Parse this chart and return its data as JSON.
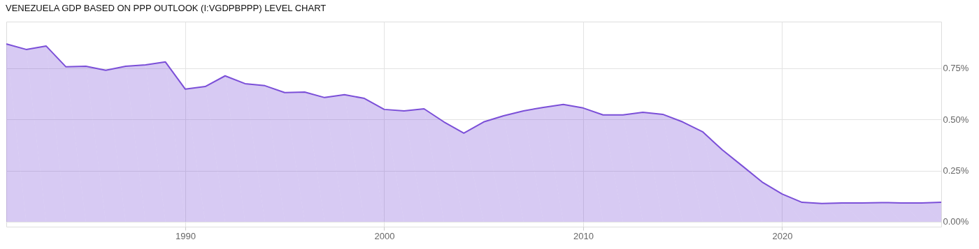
{
  "chart_data": {
    "type": "area",
    "title": "VENEZUELA GDP BASED ON PPP OUTLOOK (I:VGDPBPPP) LEVEL CHART",
    "x": [
      1981,
      1982,
      1983,
      1984,
      1985,
      1986,
      1987,
      1988,
      1989,
      1990,
      1991,
      1992,
      1993,
      1994,
      1995,
      1996,
      1997,
      1998,
      1999,
      2000,
      2001,
      2002,
      2003,
      2004,
      2005,
      2006,
      2007,
      2008,
      2009,
      2010,
      2011,
      2012,
      2013,
      2014,
      2015,
      2016,
      2017,
      2018,
      2019,
      2020,
      2021,
      2022,
      2023,
      2024,
      2025,
      2026,
      2027,
      2028
    ],
    "series": [
      {
        "color": "#7b4fd8",
        "values": [
          0.869,
          0.842,
          0.859,
          0.757,
          0.76,
          0.74,
          0.76,
          0.767,
          0.781,
          0.648,
          0.661,
          0.713,
          0.675,
          0.665,
          0.631,
          0.634,
          0.607,
          0.621,
          0.603,
          0.549,
          0.542,
          0.552,
          0.488,
          0.433,
          0.488,
          0.518,
          0.542,
          0.559,
          0.573,
          0.556,
          0.522,
          0.522,
          0.535,
          0.525,
          0.488,
          0.44,
          0.351,
          0.273,
          0.194,
          0.136,
          0.095,
          0.089,
          0.092,
          0.092,
          0.094,
          0.092,
          0.092,
          0.095
        ]
      }
    ],
    "xlim": [
      1981,
      2028
    ],
    "xticks": [
      1990,
      2000,
      2010,
      2020
    ],
    "ylim": [
      -0.024,
      0.978
    ],
    "yticks": [
      {
        "value": 0,
        "label": "0.00%"
      },
      {
        "value": 0.25,
        "label": "0.25%"
      },
      {
        "value": 0.5,
        "label": "0.50%"
      },
      {
        "value": 0.75,
        "label": "0.75%"
      }
    ],
    "grid": true
  }
}
